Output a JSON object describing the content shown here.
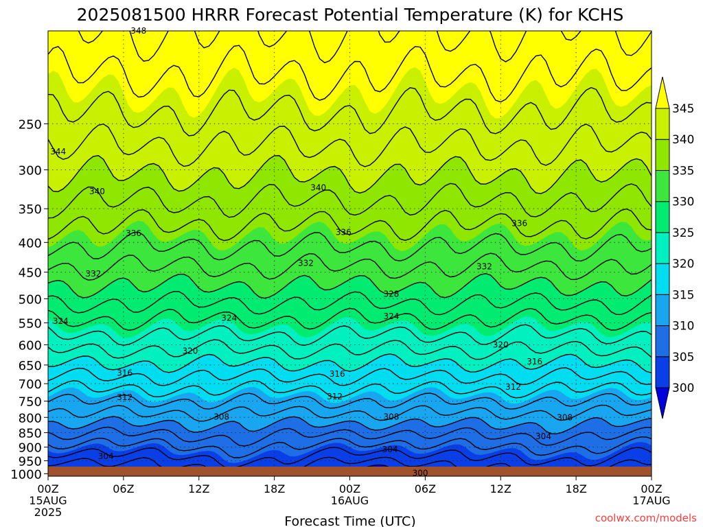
{
  "chart_data": {
    "type": "contour",
    "title": "2025081500 HRRR Forecast Potential Temperature (K) for KCHS",
    "xlabel": "Forecast Time (UTC)",
    "ylabel": "",
    "credit": "coolwx.com/models",
    "y_scale": "log",
    "y_inverted": true,
    "y_ticks": [
      250,
      300,
      350,
      400,
      450,
      500,
      550,
      600,
      650,
      700,
      750,
      800,
      850,
      900,
      950,
      1000
    ],
    "x_range_hours": [
      0,
      48
    ],
    "x_ticks": [
      {
        "hour": 0,
        "lines": [
          "00Z",
          "15AUG",
          "2025"
        ]
      },
      {
        "hour": 6,
        "lines": [
          "06Z"
        ]
      },
      {
        "hour": 12,
        "lines": [
          "12Z"
        ]
      },
      {
        "hour": 18,
        "lines": [
          "18Z"
        ]
      },
      {
        "hour": 24,
        "lines": [
          "00Z",
          "16AUG"
        ]
      },
      {
        "hour": 30,
        "lines": [
          "06Z"
        ]
      },
      {
        "hour": 36,
        "lines": [
          "12Z"
        ]
      },
      {
        "hour": 42,
        "lines": [
          "18Z"
        ]
      },
      {
        "hour": 48,
        "lines": [
          "00Z",
          "17AUG"
        ]
      }
    ],
    "grid": true,
    "colorbar": {
      "levels": [
        300,
        305,
        310,
        315,
        320,
        325,
        330,
        335,
        340,
        345
      ],
      "colors": [
        "#0000dd",
        "#0a3fe8",
        "#1e6ee6",
        "#19a6f0",
        "#00dcf0",
        "#00f0c0",
        "#00eb70",
        "#3ce63c",
        "#8fe600",
        "#c8f000",
        "#ffff00"
      ]
    },
    "contour_labels": [
      {
        "value": 348,
        "hour": 7.2,
        "p": 173
      },
      {
        "value": 344,
        "hour": 0.8,
        "p": 279
      },
      {
        "value": 340,
        "hour": 3.9,
        "p": 327
      },
      {
        "value": 340,
        "hour": 21.5,
        "p": 322
      },
      {
        "value": 336,
        "hour": 6.8,
        "p": 386
      },
      {
        "value": 336,
        "hour": 23.5,
        "p": 384
      },
      {
        "value": 336,
        "hour": 37.5,
        "p": 371
      },
      {
        "value": 332,
        "hour": 3.6,
        "p": 453
      },
      {
        "value": 332,
        "hour": 20.5,
        "p": 434
      },
      {
        "value": 332,
        "hour": 34.7,
        "p": 440
      },
      {
        "value": 328,
        "hour": 27.3,
        "p": 491
      },
      {
        "value": 324,
        "hour": 14.4,
        "p": 540
      },
      {
        "value": 324,
        "hour": 27.3,
        "p": 536
      },
      {
        "value": 324,
        "hour": 1.0,
        "p": 546
      },
      {
        "value": 320,
        "hour": 11.3,
        "p": 615
      },
      {
        "value": 320,
        "hour": 36.0,
        "p": 600
      },
      {
        "value": 316,
        "hour": 6.1,
        "p": 671
      },
      {
        "value": 316,
        "hour": 23.0,
        "p": 674
      },
      {
        "value": 316,
        "hour": 38.7,
        "p": 641
      },
      {
        "value": 312,
        "hour": 6.1,
        "p": 739
      },
      {
        "value": 312,
        "hour": 22.8,
        "p": 737
      },
      {
        "value": 312,
        "hour": 37.0,
        "p": 709
      },
      {
        "value": 308,
        "hour": 13.8,
        "p": 798
      },
      {
        "value": 308,
        "hour": 27.3,
        "p": 798
      },
      {
        "value": 308,
        "hour": 41.1,
        "p": 801
      },
      {
        "value": 304,
        "hour": 4.6,
        "p": 934
      },
      {
        "value": 304,
        "hour": 27.2,
        "p": 909
      },
      {
        "value": 304,
        "hour": 39.4,
        "p": 863
      },
      {
        "value": 300,
        "hour": 29.6,
        "p": 998
      }
    ]
  }
}
